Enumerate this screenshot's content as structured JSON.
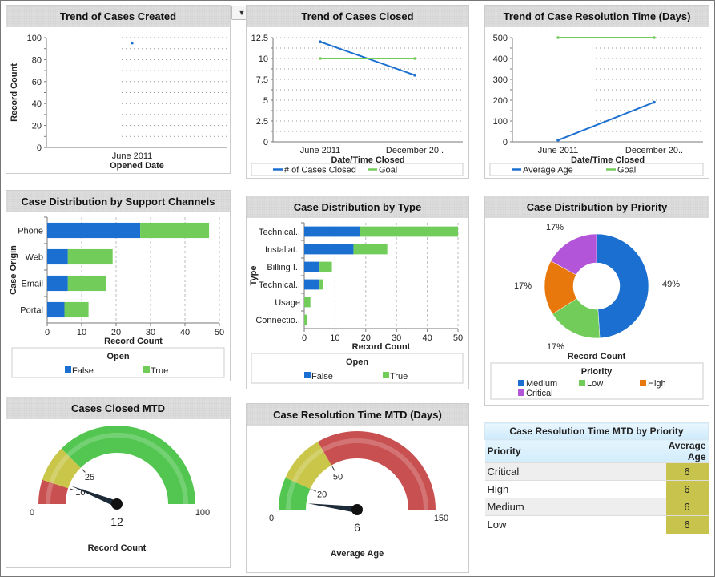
{
  "colors": {
    "blue": "#1a6fd0",
    "green": "#72cc5a",
    "orange": "#e8780c",
    "purple": "#b255d8",
    "gauge_red": "#c85050",
    "gauge_yellow": "#c9c64a",
    "gauge_green": "#52c650"
  },
  "dropdown_icon": "triangle-down",
  "chart_data": [
    {
      "id": "created",
      "type": "line",
      "title": "Trend of Cases Created",
      "xlabel": "Opened Date",
      "ylabel": "Record Count",
      "categories": [
        "June 2011"
      ],
      "ylim": [
        0,
        100
      ],
      "yticks": [
        "0",
        "20",
        "40",
        "60",
        "80",
        "100"
      ],
      "grid": true,
      "series": [
        {
          "values": [
            95
          ],
          "color": "#1a6fd0"
        }
      ]
    },
    {
      "id": "closed",
      "type": "line",
      "title": "Trend of Cases Closed",
      "xlabel": "Date/Time Closed",
      "ylabel": "",
      "categories": [
        "June 2011",
        "December 20.."
      ],
      "ylim": [
        0,
        12.5
      ],
      "yticks": [
        "0",
        "2.5",
        "5",
        "7.5",
        "10",
        "12.5"
      ],
      "grid": true,
      "legend": "bottom",
      "series": [
        {
          "name": "# of Cases Closed",
          "values": [
            12,
            8
          ],
          "color": "#1a6fd0"
        },
        {
          "name": "Goal",
          "values": [
            10,
            10
          ],
          "color": "#72cc5a"
        }
      ]
    },
    {
      "id": "restime",
      "type": "line",
      "title": "Trend of Case Resolution Time (Days)",
      "xlabel": "Date/Time Closed",
      "ylabel": "",
      "categories": [
        "June 2011",
        "December 20.."
      ],
      "ylim": [
        0,
        500
      ],
      "yticks": [
        "0",
        "100",
        "200",
        "300",
        "400",
        "500"
      ],
      "grid": true,
      "legend": "bottom",
      "series": [
        {
          "name": "Average Age",
          "values": [
            8,
            190
          ],
          "color": "#1a6fd0"
        },
        {
          "name": "Goal",
          "values": [
            500,
            500
          ],
          "color": "#72cc5a"
        }
      ]
    },
    {
      "id": "channels",
      "type": "bar",
      "title": "Case Distribution by Support Channels",
      "xlabel": "Record Count",
      "ylabel": "Case Origin",
      "categories": [
        "Phone",
        "Web",
        "Email",
        "Portal"
      ],
      "xlim": [
        0,
        50
      ],
      "xticks": [
        "0",
        "10",
        "20",
        "30",
        "40",
        "50"
      ],
      "legend_title": "Open",
      "legend": "bottom",
      "series": [
        {
          "name": "False",
          "values": [
            27,
            6,
            6,
            5
          ],
          "color": "#1a6fd0"
        },
        {
          "name": "True",
          "values": [
            20,
            13,
            11,
            7
          ],
          "color": "#72cc5a"
        }
      ]
    },
    {
      "id": "types",
      "type": "bar",
      "title": "Case Distribution by Type",
      "xlabel": "Record Count",
      "ylabel": "Type",
      "categories": [
        "Technical..",
        "Installat..",
        "Billing I..",
        "Technical..",
        "Usage",
        "Connectio.."
      ],
      "xlim": [
        0,
        50
      ],
      "xticks": [
        "0",
        "10",
        "20",
        "30",
        "40",
        "50"
      ],
      "legend_title": "Open",
      "legend": "bottom",
      "series": [
        {
          "name": "False",
          "values": [
            18,
            16,
            5,
            5,
            0,
            0
          ],
          "color": "#1a6fd0"
        },
        {
          "name": "True",
          "values": [
            32,
            11,
            4,
            1,
            2,
            1
          ],
          "color": "#72cc5a"
        }
      ]
    },
    {
      "id": "priority",
      "type": "pie",
      "title": "Case Distribution by Priority",
      "xlabel": "Record Count",
      "legend_title": "Priority",
      "legend": "bottom",
      "slices": [
        {
          "name": "Medium",
          "value": 49,
          "label": "49%",
          "color": "#1a6fd0"
        },
        {
          "name": "Low",
          "value": 17,
          "label": "17%",
          "color": "#72cc5a"
        },
        {
          "name": "High",
          "value": 17,
          "label": "17%",
          "color": "#e8780c"
        },
        {
          "name": "Critical",
          "value": 17,
          "label": "17%",
          "color": "#b255d8"
        }
      ]
    },
    {
      "id": "closedmtd",
      "type": "gauge",
      "title": "Cases Closed MTD",
      "label": "Record Count",
      "min": 0,
      "max": 100,
      "value": 12,
      "value_label": "12",
      "min_label": "0",
      "max_label": "100",
      "bands": [
        {
          "to": 10,
          "label": "10",
          "color": "#c85050"
        },
        {
          "to": 25,
          "label": "25",
          "color": "#c9c64a"
        },
        {
          "to": 100,
          "label": "",
          "color": "#52c650"
        }
      ]
    },
    {
      "id": "resmtd",
      "type": "gauge",
      "title": "Case Resolution Time MTD (Days)",
      "label": "Average Age",
      "min": 0,
      "max": 150,
      "value": 6,
      "value_label": "6",
      "min_label": "0",
      "max_label": "150",
      "bands": [
        {
          "to": 20,
          "label": "20",
          "color": "#52c650"
        },
        {
          "to": 50,
          "label": "50",
          "color": "#c9c64a"
        },
        {
          "to": 150,
          "label": "",
          "color": "#c85050"
        }
      ]
    }
  ],
  "table": {
    "title": "Case Resolution Time MTD by Priority",
    "headers": [
      "Priority",
      "Average Age"
    ],
    "rows": [
      {
        "priority": "Critical",
        "age": "6"
      },
      {
        "priority": "High",
        "age": "6"
      },
      {
        "priority": "Medium",
        "age": "6"
      },
      {
        "priority": "Low",
        "age": "6"
      }
    ]
  }
}
